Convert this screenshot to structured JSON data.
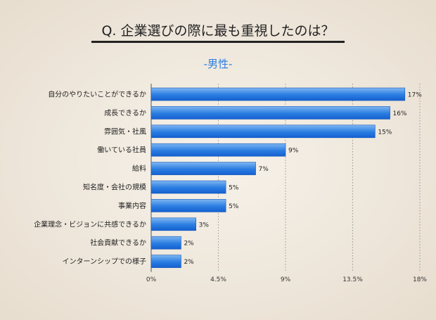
{
  "chart_data": {
    "type": "bar",
    "orientation": "horizontal",
    "title": "Q. 企業選びの際に最も重視したのは？",
    "subtitle": "-男性-",
    "categories": [
      "自分のやりたいことができるか",
      "成長できるか",
      "雰囲気・社風",
      "働いている社員",
      "給料",
      "知名度・会社の規模",
      "事業内容",
      "企業理念・ビジョンに共感できるか",
      "社会貢献できるか",
      "インターンシップでの様子"
    ],
    "values": [
      17,
      16,
      15,
      9,
      7,
      5,
      5,
      3,
      2,
      2
    ],
    "value_labels": [
      "17%",
      "16%",
      "15%",
      "9%",
      "7%",
      "5%",
      "5%",
      "3%",
      "2%",
      "2%"
    ],
    "xlim": [
      0,
      18
    ],
    "xticks": [
      0,
      4.5,
      9,
      13.5,
      18
    ],
    "xtick_labels": [
      "0%",
      "4.5%",
      "9%",
      "13.5%",
      "18%"
    ],
    "grid": true,
    "colors": {
      "bar_light": "#7fb6f2",
      "bar_dark": "#1560d0",
      "subtitle": "#2a7de1",
      "background": "#efe7dc"
    }
  }
}
